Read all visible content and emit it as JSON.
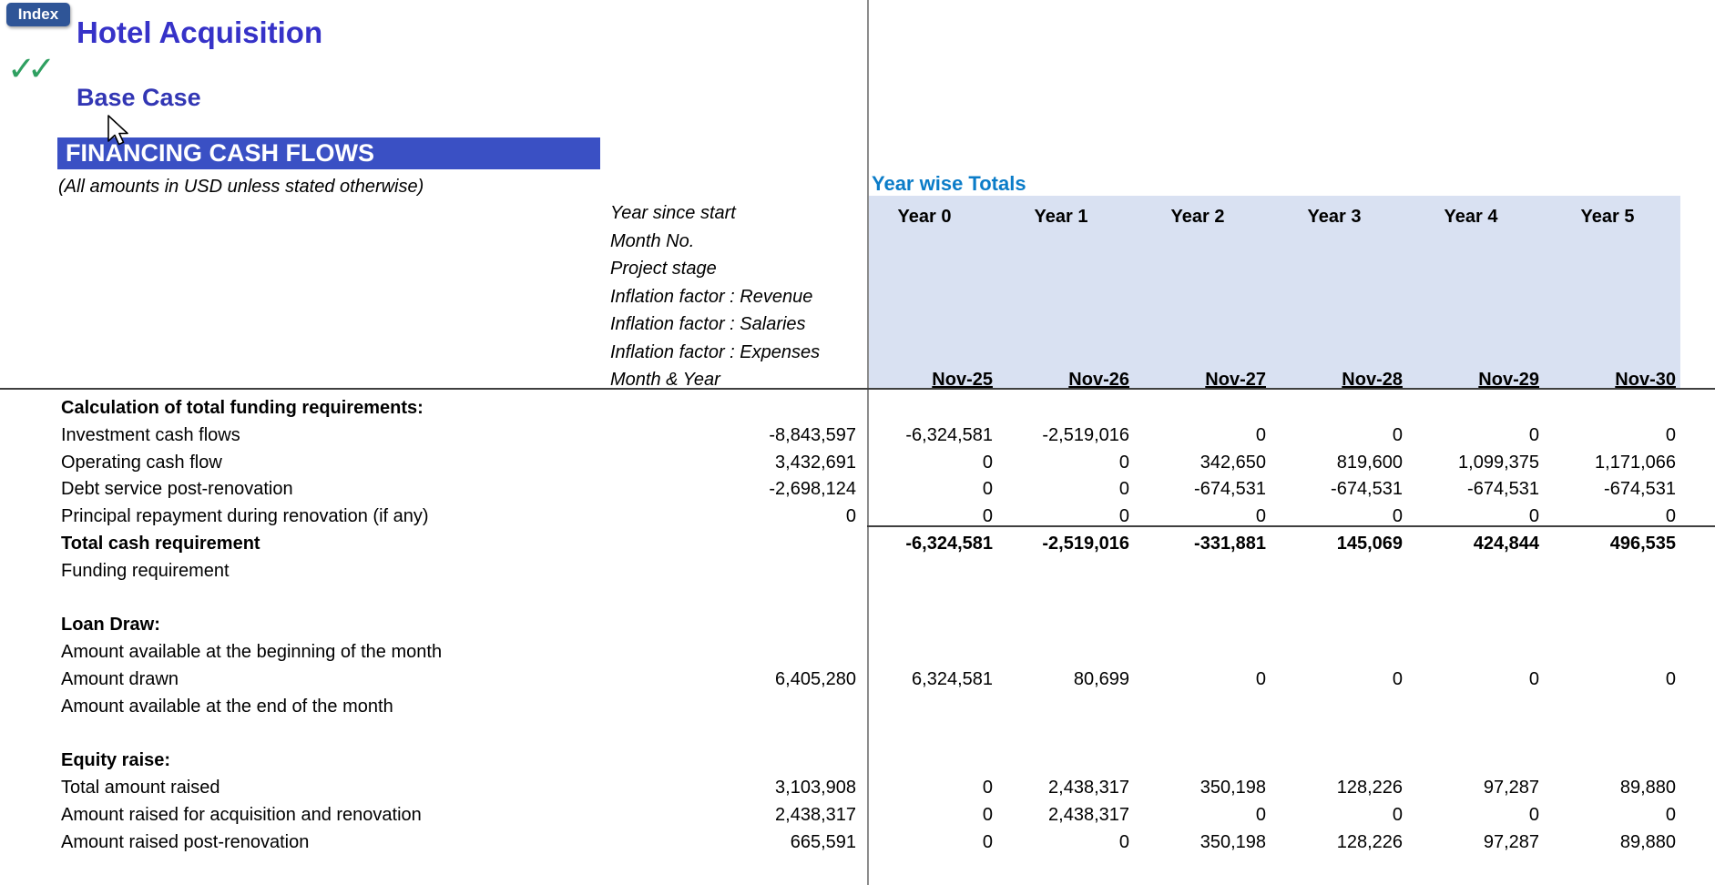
{
  "header": {
    "index_button": "Index",
    "checkmarks": "✓✓",
    "title": "Hotel Acquisition",
    "scenario": "Base Case",
    "section_banner": "FINANCING CASH FLOWS",
    "units_note": "(All amounts in USD unless stated otherwise)"
  },
  "totals": {
    "heading": "Year wise Totals"
  },
  "meta_labels": [
    "Year since start",
    "Month No.",
    "Project stage",
    "Inflation factor : Revenue",
    "Inflation factor : Salaries",
    "Inflation factor : Expenses",
    "Month & Year"
  ],
  "columns": {
    "year_headers": [
      "Year 0",
      "Year 1",
      "Year 2",
      "Year 3",
      "Year 4",
      "Year 5"
    ],
    "month_labels": [
      "Nov-25",
      "Nov-26",
      "Nov-27",
      "Nov-28",
      "Nov-29",
      "Nov-30"
    ]
  },
  "table": {
    "rows": [
      {
        "label": "Calculation of total funding requirements:",
        "bold": true,
        "values": [
          "",
          "",
          "",
          "",
          "",
          "",
          ""
        ]
      },
      {
        "label": "Investment cash flows",
        "bold": false,
        "values": [
          "-8,843,597",
          "-6,324,581",
          "-2,519,016",
          "0",
          "0",
          "0",
          "0"
        ]
      },
      {
        "label": "Operating cash flow",
        "bold": false,
        "values": [
          "3,432,691",
          "0",
          "0",
          "342,650",
          "819,600",
          "1,099,375",
          "1,171,066"
        ]
      },
      {
        "label": "Debt service post-renovation",
        "bold": false,
        "values": [
          "-2,698,124",
          "0",
          "0",
          "-674,531",
          "-674,531",
          "-674,531",
          "-674,531"
        ]
      },
      {
        "label": "Principal repayment during renovation (if any)",
        "bold": false,
        "values": [
          "0",
          "0",
          "0",
          "0",
          "0",
          "0",
          "0"
        ]
      },
      {
        "label": "Total cash requirement",
        "bold": true,
        "rule_above": true,
        "values": [
          "",
          "-6,324,581",
          "-2,519,016",
          "-331,881",
          "145,069",
          "424,844",
          "496,535"
        ]
      },
      {
        "label": "Funding requirement",
        "bold": false,
        "values": [
          "",
          "",
          "",
          "",
          "",
          "",
          ""
        ]
      },
      {
        "blank": true
      },
      {
        "label": "Loan Draw:",
        "bold": true,
        "values": [
          "",
          "",
          "",
          "",
          "",
          "",
          ""
        ]
      },
      {
        "label": "Amount available at the beginning of the month",
        "bold": false,
        "values": [
          "",
          "",
          "",
          "",
          "",
          "",
          ""
        ]
      },
      {
        "label": "Amount drawn",
        "bold": false,
        "values": [
          "6,405,280",
          "6,324,581",
          "80,699",
          "0",
          "0",
          "0",
          "0"
        ]
      },
      {
        "label": "Amount available at the end of the month",
        "bold": false,
        "values": [
          "",
          "",
          "",
          "",
          "",
          "",
          ""
        ]
      },
      {
        "blank": true
      },
      {
        "label": "Equity raise:",
        "bold": true,
        "values": [
          "",
          "",
          "",
          "",
          "",
          "",
          ""
        ]
      },
      {
        "label": "Total amount raised",
        "bold": false,
        "values": [
          "3,103,908",
          "0",
          "2,438,317",
          "350,198",
          "128,226",
          "97,287",
          "89,880"
        ]
      },
      {
        "label": "Amount raised for acquisition and renovation",
        "bold": false,
        "values": [
          "2,438,317",
          "0",
          "2,438,317",
          "0",
          "0",
          "0",
          "0"
        ]
      },
      {
        "label": "Amount raised post-renovation",
        "bold": false,
        "values": [
          "665,591",
          "0",
          "0",
          "350,198",
          "128,226",
          "97,287",
          "89,880"
        ]
      }
    ]
  },
  "colors": {
    "title_blue": "#3632C8",
    "scenario_blue": "#3236B4",
    "banner_bg": "#3A50C4",
    "totals_header_blue": "#0B7CC8",
    "panel_bg": "#D9E1F2",
    "index_btn_bg": "#2F5597",
    "check_green": "#2FA061",
    "grid_line": "#3F3F3F",
    "divider": "#8C8C8C"
  }
}
